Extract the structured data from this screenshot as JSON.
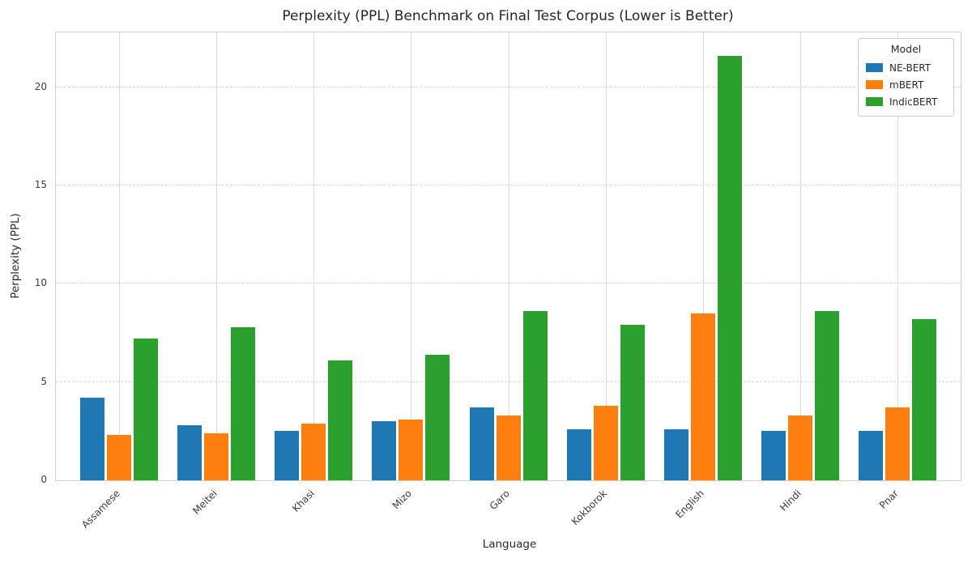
{
  "chart_data": {
    "type": "bar",
    "title": "Perplexity (PPL) Benchmark on Final Test Corpus (Lower is Better)",
    "xlabel": "Language",
    "ylabel": "Perplexity (PPL)",
    "categories": [
      "Assamese",
      "Meitei",
      "Khasi",
      "Mizo",
      "Garo",
      "Kokborok",
      "English",
      "Hindi",
      "Pnar"
    ],
    "series": [
      {
        "name": "NE-BERT",
        "color": "#1f77b4",
        "values": [
          4.2,
          2.8,
          2.5,
          3.0,
          3.7,
          2.6,
          2.6,
          2.5,
          2.5
        ]
      },
      {
        "name": "mBERT",
        "color": "#ff7f0e",
        "values": [
          2.3,
          2.4,
          2.9,
          3.1,
          3.3,
          3.8,
          8.5,
          3.3,
          3.7
        ]
      },
      {
        "name": "IndicBERT",
        "color": "#2ca02c",
        "values": [
          7.2,
          7.8,
          6.1,
          6.4,
          8.6,
          7.9,
          21.6,
          8.6,
          8.2
        ]
      }
    ],
    "yticks": [
      0,
      5,
      10,
      15,
      20
    ],
    "ylim": [
      0,
      22.8
    ],
    "legend": {
      "title": "Model",
      "position": "upper right"
    },
    "grid": true,
    "grid_color": "#d9d9d9",
    "background": "#ffffff"
  }
}
